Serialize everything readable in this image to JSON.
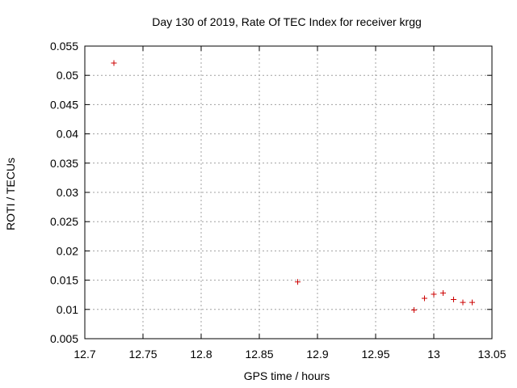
{
  "chart_data": {
    "type": "scatter",
    "title": "Day 130 of 2019, Rate Of TEC Index for receiver krgg",
    "xlabel": "GPS time / hours",
    "ylabel": "ROTI / TECUs",
    "xlim": [
      12.7,
      13.05
    ],
    "ylim": [
      0.005,
      0.055
    ],
    "xticks": [
      12.7,
      12.75,
      12.8,
      12.85,
      12.9,
      12.95,
      13.0,
      13.05
    ],
    "xtick_labels": [
      "12.7",
      "12.75",
      "12.8",
      "12.85",
      "12.9",
      "12.95",
      "13",
      "13.05"
    ],
    "yticks": [
      0.005,
      0.01,
      0.015,
      0.02,
      0.025,
      0.03,
      0.035,
      0.04,
      0.045,
      0.05,
      0.055
    ],
    "ytick_labels": [
      "0.005",
      "0.01",
      "0.015",
      "0.02",
      "0.025",
      "0.03",
      "0.035",
      "0.04",
      "0.045",
      "0.05",
      "0.055"
    ],
    "grid": true,
    "marker": "+",
    "marker_color": "#cc0000",
    "points": [
      {
        "x": 12.725,
        "y": 0.0521
      },
      {
        "x": 12.883,
        "y": 0.0147
      },
      {
        "x": 12.983,
        "y": 0.0099
      },
      {
        "x": 12.992,
        "y": 0.0119
      },
      {
        "x": 13.0,
        "y": 0.0126
      },
      {
        "x": 13.008,
        "y": 0.0128
      },
      {
        "x": 13.017,
        "y": 0.0117
      },
      {
        "x": 13.025,
        "y": 0.0112
      },
      {
        "x": 13.033,
        "y": 0.0112
      }
    ]
  }
}
